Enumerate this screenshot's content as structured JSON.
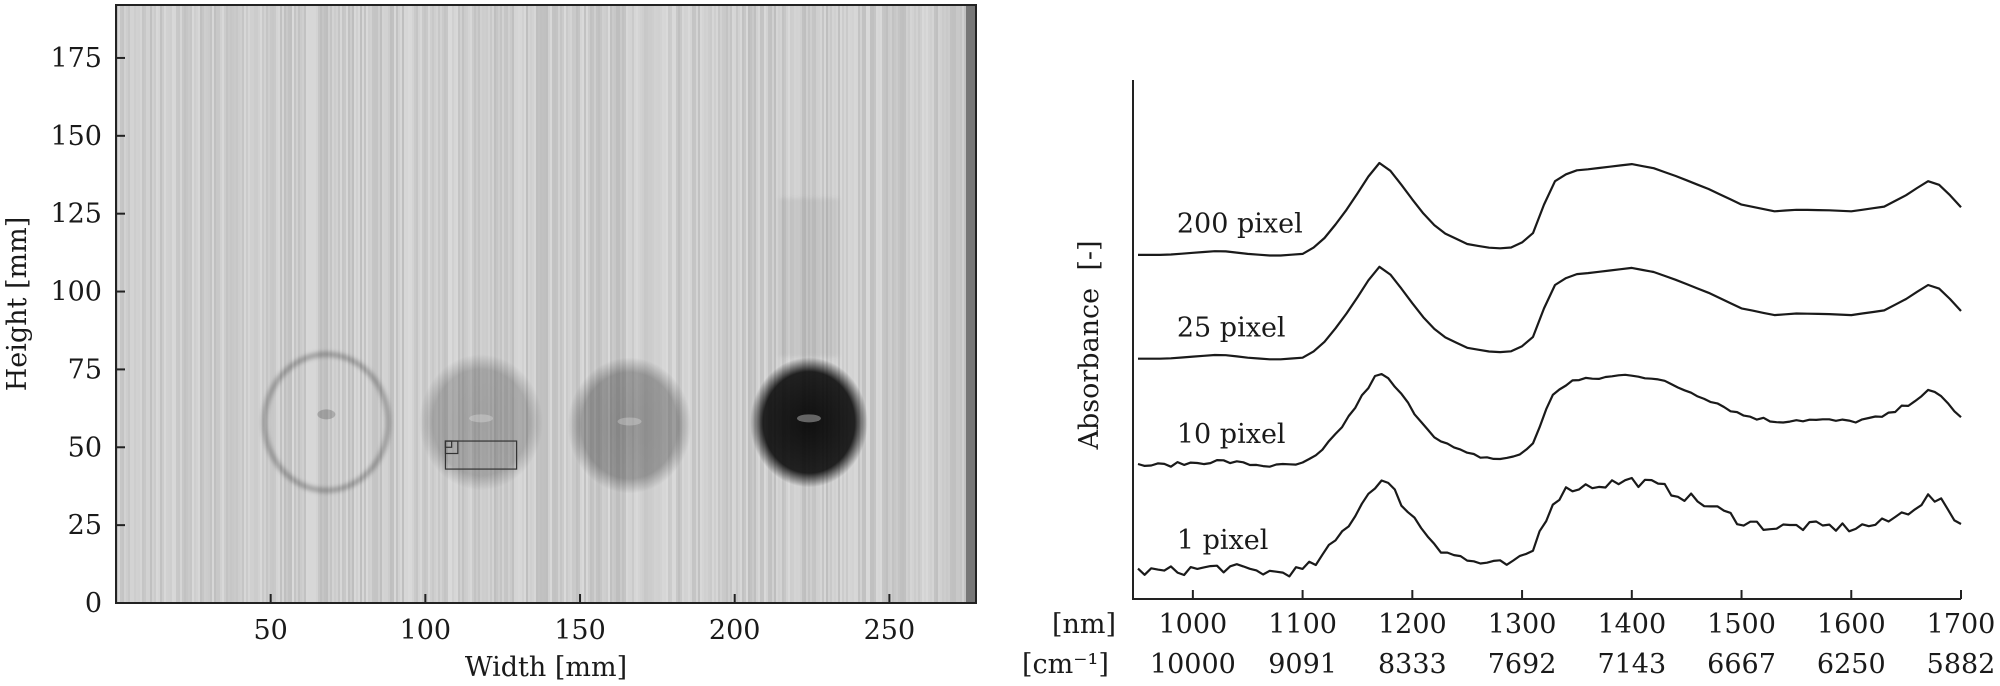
{
  "chart_data": [
    {
      "type": "heatmap",
      "title": "",
      "xlabel": "Width [mm]",
      "ylabel": "Height [mm]",
      "xlim": [
        0,
        278
      ],
      "ylim": [
        0,
        192
      ],
      "xticks": [
        50,
        100,
        150,
        200,
        250
      ],
      "yticks": [
        0,
        25,
        50,
        75,
        100,
        125,
        150,
        175
      ],
      "grid": false,
      "legend": "none",
      "samples": [
        {
          "name": "ring",
          "x": 68,
          "y": 58,
          "rx": 20,
          "ry": 22,
          "style": "ring",
          "darkness": 0.28
        },
        {
          "name": "faint",
          "x": 118,
          "y": 58,
          "rx": 20,
          "ry": 22,
          "style": "disk",
          "darkness": 0.22
        },
        {
          "name": "medium",
          "x": 166,
          "y": 57,
          "rx": 20,
          "ry": 22,
          "style": "disk",
          "darkness": 0.3
        },
        {
          "name": "dark",
          "x": 224,
          "y": 58,
          "rx": 19,
          "ry": 21,
          "style": "disk",
          "darkness": 0.92
        }
      ],
      "roi_boxes": [
        {
          "x0": 106.5,
          "x1": 129.5,
          "y0": 43,
          "y1": 52
        },
        {
          "x0": 106.5,
          "x1": 110.5,
          "y0": 48,
          "y1": 52
        },
        {
          "x0": 106.5,
          "x1": 108.5,
          "y0": 50,
          "y1": 52
        }
      ]
    },
    {
      "type": "line",
      "title": "",
      "xlabel": "",
      "ylabel": "Absorbance  [-]",
      "xlim": [
        950,
        1700
      ],
      "ylim": [
        0,
        100
      ],
      "axis_units_nm": "[nm]",
      "axis_units_cm": "[cm⁻¹]",
      "xticks_nm": [
        "1000",
        "1100",
        "1200",
        "1300",
        "1400",
        "1500",
        "1600",
        "1700"
      ],
      "xticks_cm": [
        "10000",
        "9091",
        "8333",
        "7692",
        "7143",
        "6667",
        "6250",
        "5882"
      ],
      "grid": false,
      "legend": "inline-labels",
      "series": [
        {
          "name": "200 pixel",
          "offset": 66,
          "noise": 0,
          "x": [
            950,
            975,
            1000,
            1025,
            1050,
            1075,
            1100,
            1115,
            1125,
            1135,
            1145,
            1155,
            1165,
            1170,
            1180,
            1190,
            1200,
            1210,
            1225,
            1250,
            1275,
            1295,
            1310,
            1320,
            1330,
            1345,
            1360,
            1380,
            1400,
            1420,
            1440,
            1470,
            1500,
            1530,
            1550,
            1580,
            1600,
            1630,
            1650,
            1660,
            1670,
            1680,
            1690,
            1700
          ],
          "y": [
            0.3,
            0.3,
            0.7,
            1.1,
            0.5,
            0.1,
            0.5,
            2.3,
            4.8,
            7.5,
            10.5,
            13.8,
            17.0,
            18.0,
            16.5,
            13.8,
            11.0,
            8.3,
            4.9,
            2.4,
            1.5,
            1.8,
            4.5,
            10.0,
            14.5,
            16.5,
            16.8,
            17.3,
            17.8,
            17.0,
            15.5,
            13.0,
            10.0,
            8.7,
            9.0,
            8.9,
            8.7,
            9.6,
            11.8,
            13.2,
            14.5,
            13.8,
            11.8,
            9.5
          ]
        },
        {
          "name": "25 pixel",
          "offset": 46,
          "noise": 0,
          "x": [
            950,
            975,
            1000,
            1025,
            1050,
            1075,
            1100,
            1115,
            1125,
            1135,
            1145,
            1155,
            1165,
            1170,
            1180,
            1190,
            1200,
            1210,
            1225,
            1250,
            1275,
            1295,
            1310,
            1320,
            1330,
            1345,
            1360,
            1380,
            1400,
            1420,
            1440,
            1470,
            1500,
            1530,
            1550,
            1580,
            1600,
            1630,
            1650,
            1660,
            1670,
            1680,
            1690,
            1700
          ],
          "y": [
            0.3,
            0.3,
            0.7,
            1.1,
            0.5,
            0.1,
            0.5,
            2.3,
            4.8,
            7.5,
            10.5,
            13.8,
            17.0,
            18.0,
            16.5,
            13.8,
            11.0,
            8.3,
            4.9,
            2.4,
            1.5,
            1.8,
            4.5,
            10.0,
            14.5,
            16.5,
            16.8,
            17.3,
            17.8,
            17.0,
            15.5,
            13.0,
            10.0,
            8.7,
            9.0,
            8.9,
            8.7,
            9.6,
            11.8,
            13.2,
            14.5,
            13.8,
            11.8,
            9.5
          ]
        },
        {
          "name": "10 pixel",
          "offset": 25.5,
          "noise": 0.4,
          "x": [
            950,
            975,
            1000,
            1025,
            1050,
            1075,
            1100,
            1115,
            1125,
            1135,
            1145,
            1155,
            1165,
            1170,
            1180,
            1190,
            1200,
            1210,
            1225,
            1250,
            1275,
            1295,
            1310,
            1320,
            1330,
            1345,
            1360,
            1380,
            1400,
            1420,
            1440,
            1470,
            1500,
            1530,
            1550,
            1580,
            1600,
            1630,
            1650,
            1660,
            1670,
            1680,
            1690,
            1700
          ],
          "y": [
            0.3,
            0.3,
            0.7,
            1.1,
            0.5,
            0.1,
            0.5,
            2.3,
            4.8,
            7.5,
            10.5,
            13.8,
            17.0,
            18.0,
            16.5,
            13.8,
            11.0,
            8.3,
            4.9,
            2.4,
            1.5,
            1.8,
            4.5,
            10.0,
            14.5,
            16.5,
            16.8,
            17.3,
            17.8,
            17.0,
            15.5,
            13.0,
            10.0,
            8.7,
            9.0,
            8.9,
            8.7,
            9.6,
            11.8,
            13.2,
            14.5,
            13.8,
            11.8,
            9.5
          ]
        },
        {
          "name": "1 pixel",
          "offset": 5,
          "noise": 1.0,
          "x": [
            950,
            975,
            1000,
            1025,
            1050,
            1075,
            1100,
            1115,
            1125,
            1135,
            1145,
            1155,
            1165,
            1170,
            1180,
            1190,
            1200,
            1210,
            1225,
            1250,
            1275,
            1295,
            1310,
            1320,
            1330,
            1345,
            1360,
            1380,
            1400,
            1420,
            1440,
            1470,
            1500,
            1530,
            1550,
            1580,
            1600,
            1630,
            1650,
            1660,
            1670,
            1680,
            1690,
            1700
          ],
          "y": [
            0.3,
            0.3,
            0.7,
            1.1,
            0.5,
            0.1,
            0.5,
            2.3,
            4.8,
            7.5,
            10.5,
            13.8,
            17.0,
            18.0,
            16.5,
            13.8,
            11.0,
            8.3,
            4.9,
            2.4,
            1.5,
            1.8,
            4.5,
            10.0,
            14.5,
            16.5,
            16.8,
            17.3,
            17.8,
            17.0,
            15.5,
            13.0,
            10.0,
            8.7,
            9.0,
            8.9,
            8.7,
            9.6,
            11.8,
            13.2,
            14.5,
            13.8,
            11.8,
            9.5
          ]
        }
      ]
    }
  ]
}
